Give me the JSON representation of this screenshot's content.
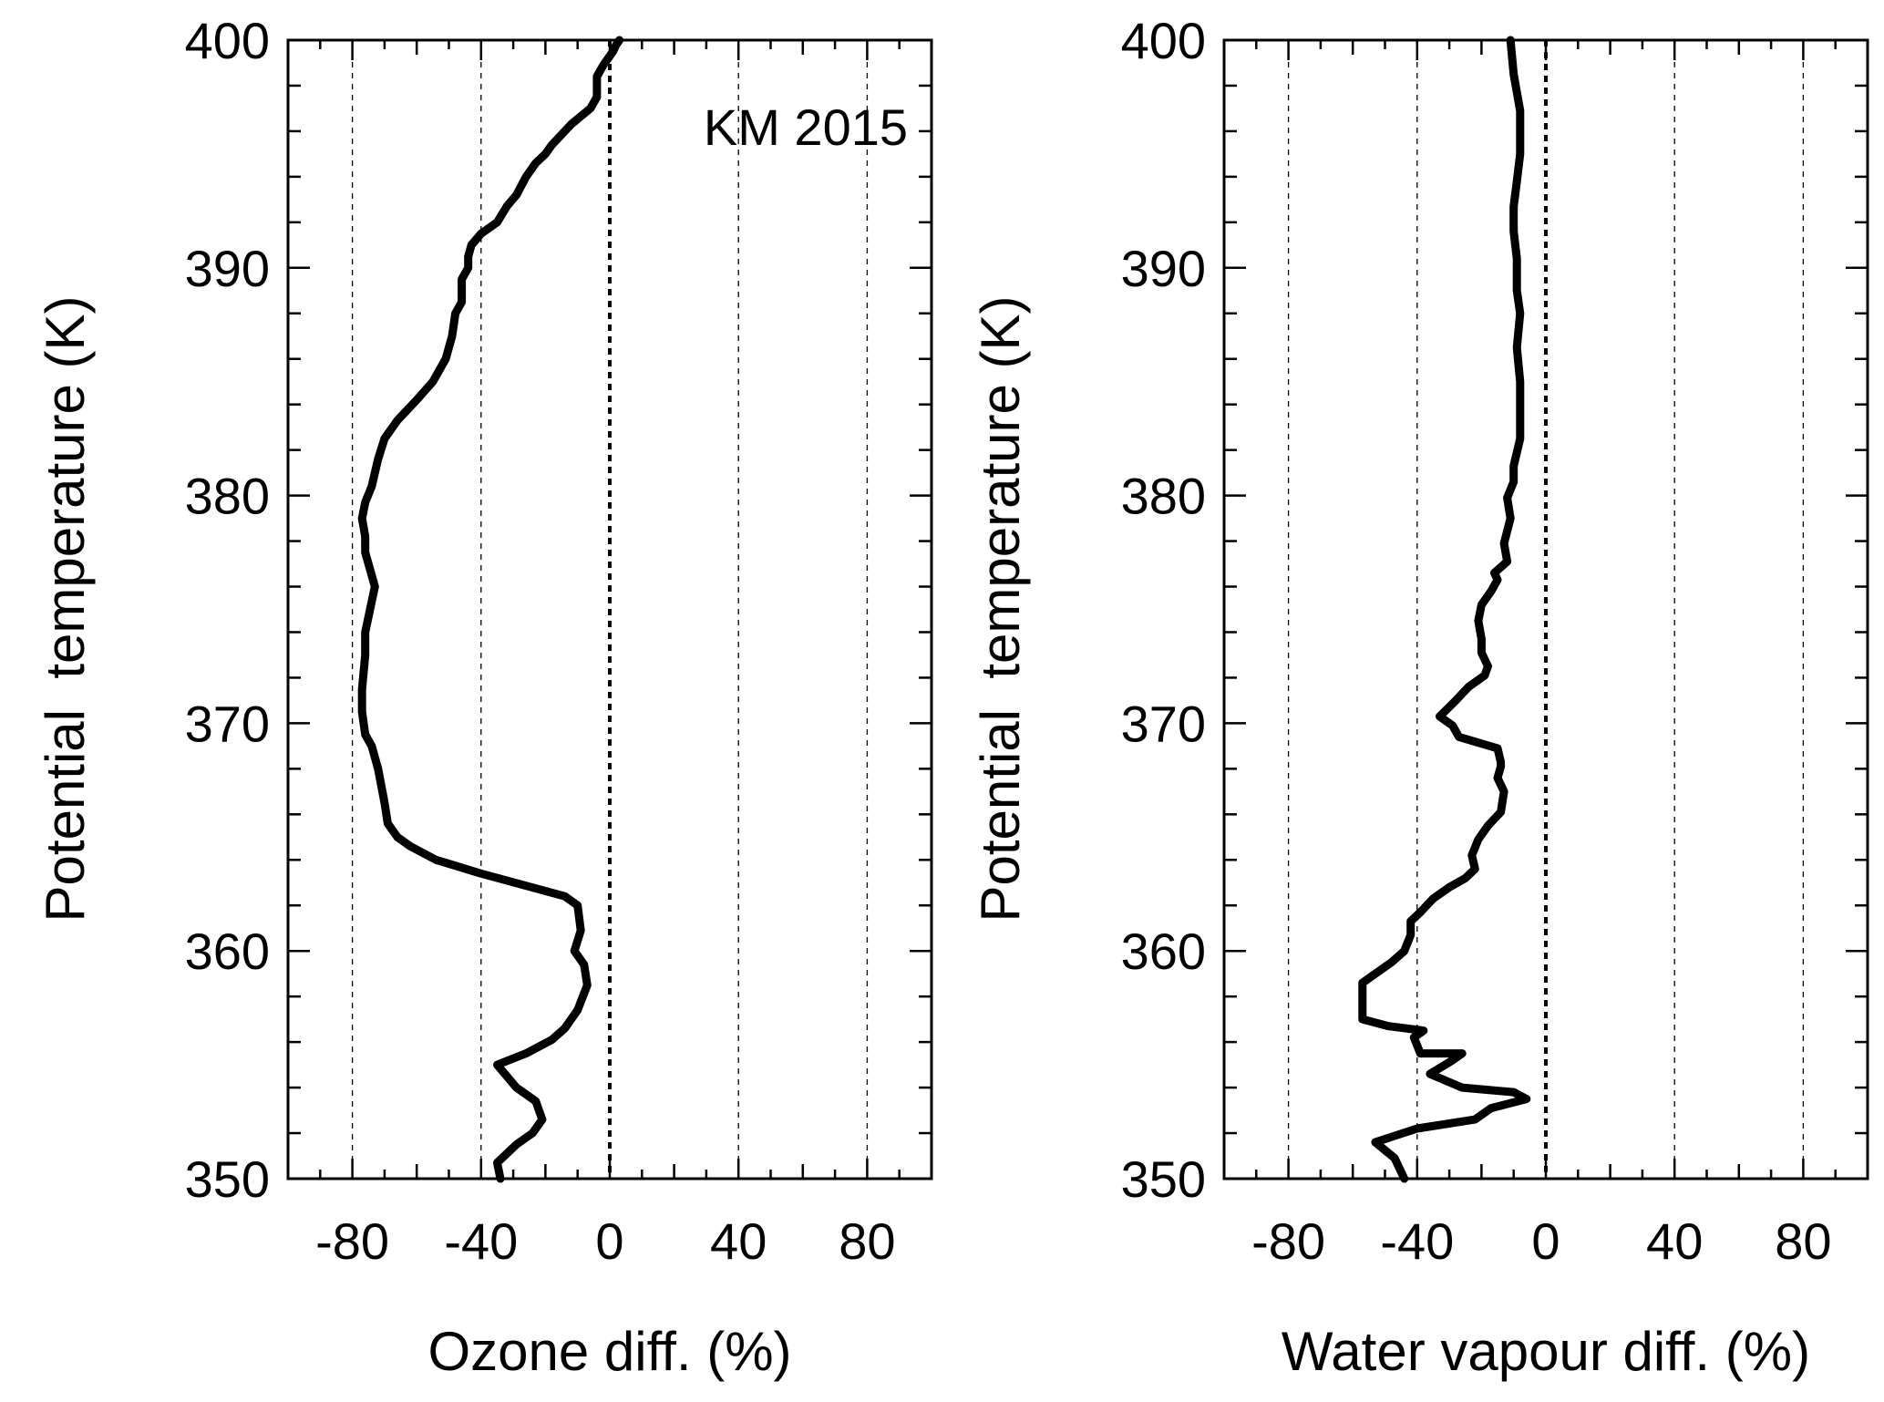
{
  "chart_data": [
    {
      "type": "line",
      "xlabel": "Ozone diff. (%)",
      "ylabel": "Potential  temperature (K)",
      "annotation": "KM 2015",
      "xlim": [
        -100,
        100
      ],
      "ylim": [
        350,
        400
      ],
      "xticks": [
        -80,
        -40,
        0,
        40,
        80
      ],
      "xtick_labels": [
        "-80",
        "-40",
        "0",
        "40",
        "80"
      ],
      "yticks": [
        350,
        360,
        370,
        380,
        390,
        400
      ],
      "ytick_labels": [
        "350",
        "360",
        "370",
        "380",
        "390",
        "400"
      ],
      "grid": "dashed vertical lines at x ticks, bold dotted line at 0",
      "series": [
        {
          "color": "#000000",
          "x": [
            -34,
            -35,
            -29,
            -24,
            -21,
            -23,
            -29,
            -35,
            -26,
            -18,
            -14,
            -10,
            -7,
            -8,
            -11,
            -9,
            -10,
            -14,
            -40,
            -54,
            -62,
            -66,
            -69,
            -70,
            -72,
            -74,
            -76,
            -77,
            -77,
            -76,
            -76,
            -73,
            -76,
            -76,
            -77,
            -76,
            -74,
            -73,
            -72,
            -70,
            -66,
            -60,
            -55,
            -51,
            -49,
            -48,
            -46,
            -46,
            -44,
            -44,
            -43,
            -40,
            -35,
            -32,
            -29,
            -26,
            -23,
            -20,
            -18,
            -12,
            -6,
            -4,
            -4,
            -2,
            1,
            2,
            3
          ],
          "y": [
            350,
            350.7,
            351.5,
            352,
            352.6,
            353.4,
            354,
            355,
            355.5,
            356.1,
            356.6,
            357.4,
            358.5,
            359.4,
            360,
            360.9,
            362,
            362.4,
            363.4,
            364,
            364.6,
            365,
            365.6,
            366.5,
            368,
            369,
            369.5,
            370.5,
            371.5,
            373,
            374,
            376,
            377.5,
            378.2,
            379,
            379.7,
            380.4,
            381,
            381.6,
            382.5,
            383.3,
            384.2,
            385,
            386,
            387,
            388,
            388.5,
            389.5,
            390,
            390.5,
            391,
            391.5,
            392,
            392.7,
            393.2,
            394,
            394.6,
            395,
            395.4,
            396.3,
            397,
            397.5,
            398.4,
            398.9,
            399.5,
            399.8,
            400
          ]
        }
      ]
    },
    {
      "type": "line",
      "xlabel": "Water vapour diff. (%)",
      "ylabel": "Potential  temperature (K)",
      "xlim": [
        -100,
        100
      ],
      "ylim": [
        350,
        400
      ],
      "xticks": [
        -80,
        -40,
        0,
        40,
        80
      ],
      "xtick_labels": [
        "-80",
        "-40",
        "0",
        "40",
        "80"
      ],
      "yticks": [
        350,
        360,
        370,
        380,
        390,
        400
      ],
      "ytick_labels": [
        "350",
        "360",
        "370",
        "380",
        "390",
        "400"
      ],
      "grid": "dashed vertical lines at x ticks, bold dotted line at 0",
      "series": [
        {
          "color": "#000000",
          "x": [
            -44,
            -47,
            -53,
            -40,
            -22,
            -17,
            -6,
            -10,
            -26,
            -36,
            -29,
            -26,
            -39,
            -41,
            -38,
            -49,
            -57,
            -57,
            -57,
            -53,
            -48,
            -44,
            -42,
            -42,
            -39,
            -35,
            -30,
            -25,
            -22,
            -23,
            -21,
            -18,
            -14,
            -13,
            -15,
            -14,
            -14,
            -15,
            -27,
            -29,
            -33,
            -28,
            -24,
            -19,
            -18,
            -20,
            -20,
            -21,
            -20,
            -17,
            -15,
            -16,
            -12,
            -13,
            -11,
            -12,
            -10,
            -10,
            -8,
            -8,
            -9,
            -8,
            -9,
            -9,
            -10,
            -10,
            -9,
            -8,
            -8,
            -10,
            -11
          ],
          "y": [
            350,
            350.9,
            351.6,
            352.2,
            352.6,
            353.1,
            353.5,
            353.8,
            354,
            354.6,
            355.2,
            355.5,
            355.5,
            356.2,
            356.5,
            356.7,
            357,
            358,
            358.6,
            359,
            359.5,
            360,
            360.7,
            361.3,
            361.7,
            362.3,
            362.8,
            363.2,
            363.6,
            364.2,
            364.9,
            365.5,
            366.1,
            367,
            367.6,
            368.1,
            368.3,
            368.9,
            369.4,
            369.9,
            370.3,
            371,
            371.6,
            372.1,
            372.5,
            373.1,
            373.7,
            374.5,
            375.2,
            375.8,
            376.3,
            376.6,
            377.1,
            377.9,
            379,
            379.9,
            380.6,
            381.3,
            382.5,
            385,
            386.5,
            388,
            389,
            390.4,
            391.6,
            392.7,
            393.8,
            395,
            396.9,
            398.5,
            400
          ]
        }
      ]
    }
  ]
}
